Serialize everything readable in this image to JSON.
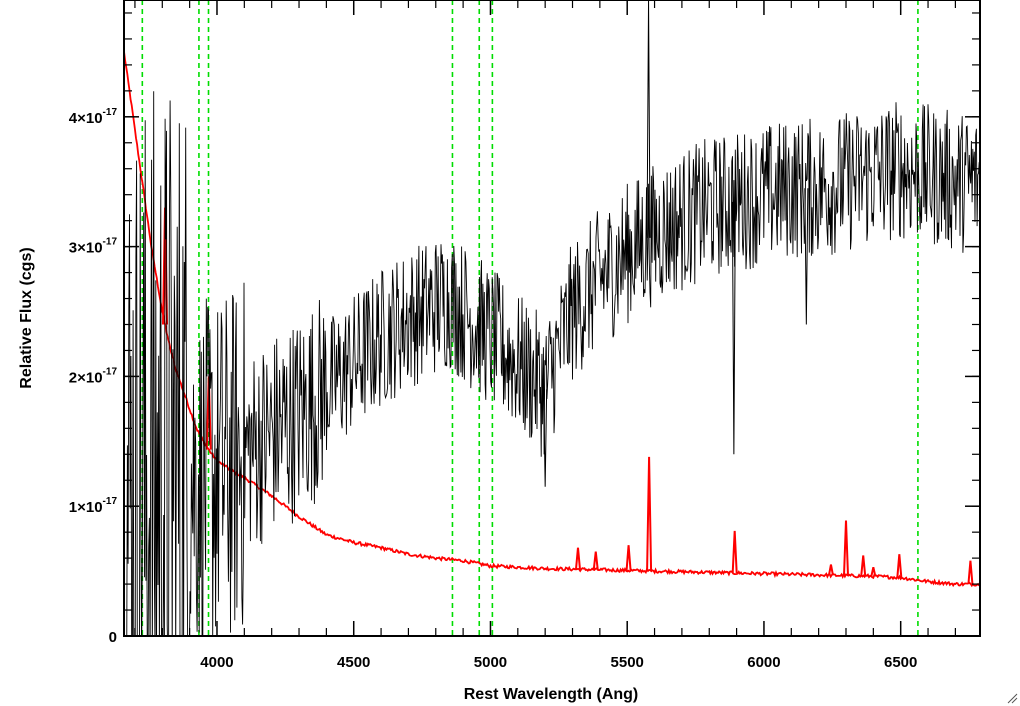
{
  "chart_data": {
    "type": "line",
    "title": "",
    "xlabel": "Rest Wavelength (Ang)",
    "ylabel": "Relative Flux (cgs)",
    "xlim": [
      3660,
      6790
    ],
    "ylim": [
      0,
      4.9e-17
    ],
    "x_ticks": [
      4000,
      4500,
      5000,
      5500,
      6000,
      6500
    ],
    "x_tick_labels": [
      "4000",
      "4500",
      "5000",
      "5500",
      "6000",
      "6500"
    ],
    "y_ticks": [
      0,
      1e-17,
      2e-17,
      3e-17,
      4e-17
    ],
    "y_tick_labels": [
      {
        "mantissa": "0",
        "exp": ""
      },
      {
        "mantissa": "1×10",
        "exp": "-17"
      },
      {
        "mantissa": "2×10",
        "exp": "-17"
      },
      {
        "mantissa": "3×10",
        "exp": "-17"
      },
      {
        "mantissa": "4×10",
        "exp": "-17"
      }
    ],
    "x_minor_step": 100,
    "y_minor_step": 2e-18,
    "vlines": [
      3727,
      3934,
      3969,
      4861,
      4959,
      5007,
      6563
    ],
    "series": [
      {
        "role": "spectrum",
        "color": "#000000",
        "x": [
          3700,
          3750,
          3800,
          3850,
          3900,
          3950,
          4000,
          4050,
          4100,
          4200,
          4300,
          4400,
          4500,
          4600,
          4700,
          4800,
          4850,
          4900,
          4950,
          5000,
          5050,
          5100,
          5150,
          5200,
          5250,
          5300,
          5400,
          5500,
          5600,
          5700,
          5800,
          5900,
          6000,
          6100,
          6200,
          6300,
          6400,
          6500,
          6600,
          6700,
          6780
        ],
        "y": [
          1e-17,
          1.1e-17,
          1.2e-17,
          1.2e-17,
          1.25e-17,
          1.2e-17,
          1.25e-17,
          1.3e-17,
          1.4e-17,
          1.55e-17,
          1.7e-17,
          1.9e-17,
          2.1e-17,
          2.3e-17,
          2.45e-17,
          2.55e-17,
          2.6e-17,
          2.5e-17,
          2.4e-17,
          2.3e-17,
          2.2e-17,
          2.1e-17,
          2e-17,
          1.9e-17,
          2.2e-17,
          2.5e-17,
          2.75e-17,
          2.95e-17,
          3.1e-17,
          3.2e-17,
          3.3e-17,
          3.35e-17,
          3.4e-17,
          3.45e-17,
          3.45e-17,
          3.5e-17,
          3.55e-17,
          3.6e-17,
          3.55e-17,
          3.5e-17,
          3.5e-17
        ]
      },
      {
        "role": "error",
        "color": "#ff0000",
        "x": [
          3660,
          3680,
          3700,
          3720,
          3740,
          3760,
          3780,
          3800,
          3825,
          3850,
          3875,
          3900,
          3925,
          3950,
          3975,
          4000,
          4050,
          4100,
          4150,
          4200,
          4300,
          4400,
          4500,
          4600,
          4700,
          4800,
          4900,
          5000,
          5200,
          5400,
          5600,
          5800,
          6000,
          6200,
          6400,
          6500,
          6600,
          6700,
          6790
        ],
        "y": [
          4.5e-17,
          4.2e-17,
          3.9e-17,
          3.6e-17,
          3.3e-17,
          3e-17,
          2.75e-17,
          2.5e-17,
          2.25e-17,
          2.05e-17,
          1.9e-17,
          1.75e-17,
          1.6e-17,
          1.5e-17,
          1.42e-17,
          1.35e-17,
          1.28e-17,
          1.22e-17,
          1.15e-17,
          1.08e-17,
          9.2e-18,
          7.8e-18,
          7.2e-18,
          6.8e-18,
          6.3e-18,
          6e-18,
          5.8e-18,
          5.4e-18,
          5.2e-18,
          5.1e-18,
          5e-18,
          4.9e-18,
          4.8e-18,
          4.7e-18,
          4.6e-18,
          4.5e-18,
          4.2e-18,
          4e-18,
          4e-18
        ]
      }
    ],
    "error_spikes": [
      {
        "x": 3810,
        "y": 3.3e-17
      },
      {
        "x": 3970,
        "y": 2e-17
      },
      {
        "x": 5320,
        "y": 6.8e-18
      },
      {
        "x": 5385,
        "y": 6.5e-18
      },
      {
        "x": 5505,
        "y": 7e-18
      },
      {
        "x": 5580,
        "y": 1.38e-17
      },
      {
        "x": 5893,
        "y": 8.1e-18
      },
      {
        "x": 6245,
        "y": 5.5e-18
      },
      {
        "x": 6300,
        "y": 8.9e-18
      },
      {
        "x": 6363,
        "y": 6.2e-18
      },
      {
        "x": 6400,
        "y": 5.3e-18
      },
      {
        "x": 6495,
        "y": 6.3e-18
      },
      {
        "x": 6755,
        "y": 5.8e-18
      }
    ],
    "spectrum_features": [
      {
        "x": 5578,
        "y": 4.9e-17
      },
      {
        "x": 5890,
        "y": 1.4e-17
      },
      {
        "x": 6155,
        "y": 2.4e-17
      },
      {
        "x": 5200,
        "y": 1.15e-17
      }
    ],
    "colors": {
      "spectrum": "#000000",
      "error": "#ff0000",
      "vlines": "#00dd00",
      "axes": "#000000"
    }
  }
}
